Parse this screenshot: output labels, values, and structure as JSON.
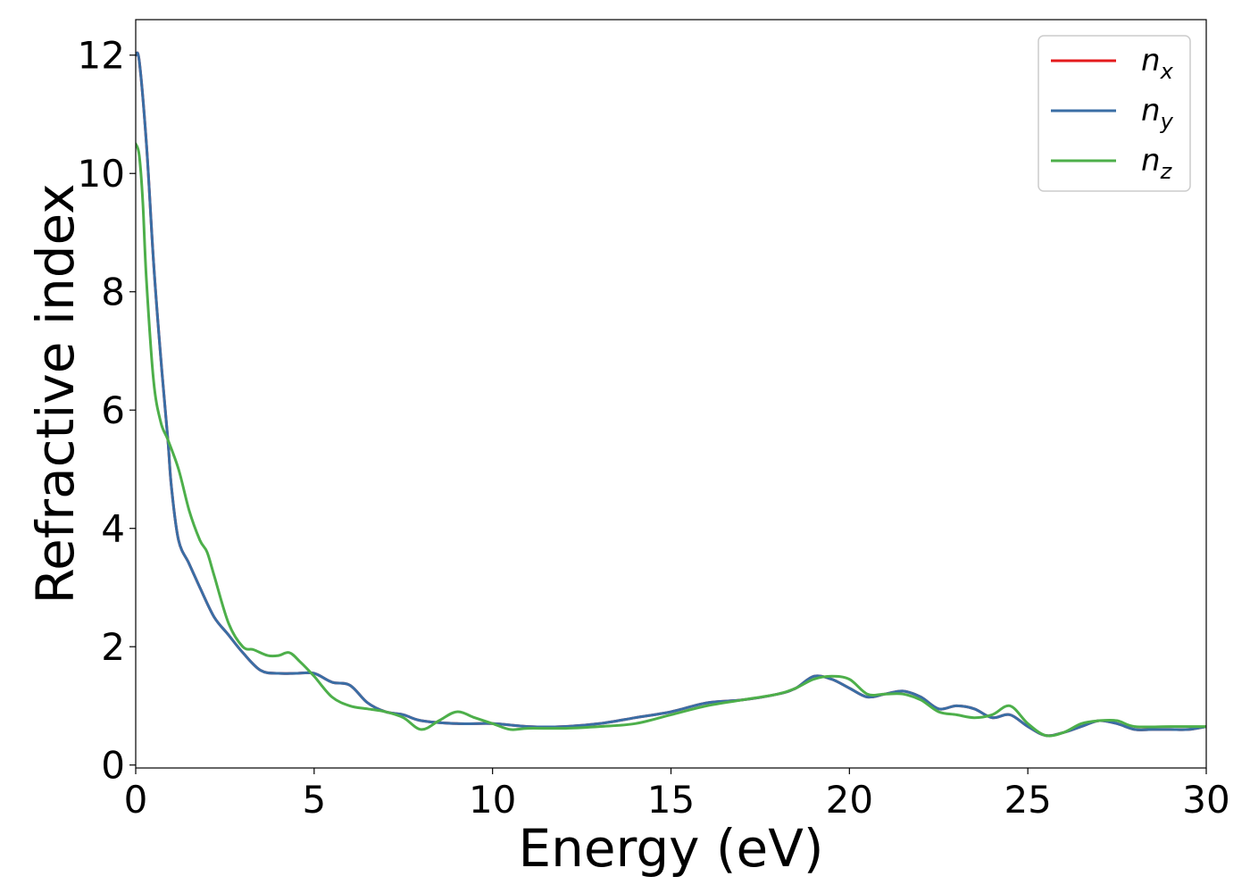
{
  "chart_data": {
    "type": "line",
    "title": "",
    "xlabel": "Energy (eV)",
    "ylabel": "Refractive index",
    "xlim": [
      0,
      30
    ],
    "ylim": [
      -0.05,
      12.6
    ],
    "xticks": [
      0,
      5,
      10,
      15,
      20,
      25,
      30
    ],
    "yticks": [
      0,
      2,
      4,
      6,
      8,
      10,
      12
    ],
    "grid": false,
    "legend_position": "top-right",
    "series": [
      {
        "name": "x",
        "color": "#e41a1c",
        "x": [
          0,
          0.1,
          0.3,
          0.5,
          0.7,
          0.9,
          1.0,
          1.2,
          1.5,
          1.8,
          2.2,
          2.6,
          3.0,
          3.5,
          4.0,
          4.5,
          5.0,
          5.5,
          6.0,
          6.5,
          7.0,
          7.5,
          8.0,
          9.0,
          10.0,
          11.0,
          12.0,
          13.0,
          14.0,
          15.0,
          16.0,
          17.0,
          18.0,
          18.5,
          19.0,
          19.5,
          20.0,
          20.5,
          21.0,
          21.5,
          22.0,
          22.5,
          23.0,
          23.5,
          24.0,
          24.5,
          25.0,
          25.5,
          26.0,
          26.5,
          27.0,
          27.5,
          28.0,
          28.5,
          29.0,
          29.5,
          30.0
        ],
        "y": [
          12.0,
          11.9,
          10.5,
          8.5,
          6.9,
          5.5,
          4.7,
          3.8,
          3.4,
          3.0,
          2.5,
          2.2,
          1.9,
          1.6,
          1.55,
          1.55,
          1.55,
          1.4,
          1.35,
          1.05,
          0.9,
          0.85,
          0.75,
          0.7,
          0.7,
          0.65,
          0.65,
          0.7,
          0.8,
          0.9,
          1.05,
          1.1,
          1.2,
          1.3,
          1.5,
          1.45,
          1.3,
          1.15,
          1.2,
          1.25,
          1.15,
          0.95,
          1.0,
          0.95,
          0.8,
          0.85,
          0.65,
          0.5,
          0.55,
          0.65,
          0.75,
          0.7,
          0.6,
          0.6,
          0.6,
          0.6,
          0.65
        ]
      },
      {
        "name": "y",
        "color": "#3a6ea5",
        "x": [
          0,
          0.1,
          0.3,
          0.5,
          0.7,
          0.9,
          1.0,
          1.2,
          1.5,
          1.8,
          2.2,
          2.6,
          3.0,
          3.5,
          4.0,
          4.5,
          5.0,
          5.5,
          6.0,
          6.5,
          7.0,
          7.5,
          8.0,
          9.0,
          10.0,
          11.0,
          12.0,
          13.0,
          14.0,
          15.0,
          16.0,
          17.0,
          18.0,
          18.5,
          19.0,
          19.5,
          20.0,
          20.5,
          21.0,
          21.5,
          22.0,
          22.5,
          23.0,
          23.5,
          24.0,
          24.5,
          25.0,
          25.5,
          26.0,
          26.5,
          27.0,
          27.5,
          28.0,
          28.5,
          29.0,
          29.5,
          30.0
        ],
        "y": [
          12.0,
          11.9,
          10.5,
          8.5,
          6.9,
          5.5,
          4.7,
          3.8,
          3.4,
          3.0,
          2.5,
          2.2,
          1.9,
          1.6,
          1.55,
          1.55,
          1.55,
          1.4,
          1.35,
          1.05,
          0.9,
          0.85,
          0.75,
          0.7,
          0.7,
          0.65,
          0.65,
          0.7,
          0.8,
          0.9,
          1.05,
          1.1,
          1.2,
          1.3,
          1.5,
          1.45,
          1.3,
          1.15,
          1.2,
          1.25,
          1.15,
          0.95,
          1.0,
          0.95,
          0.8,
          0.85,
          0.65,
          0.5,
          0.55,
          0.65,
          0.75,
          0.7,
          0.6,
          0.6,
          0.6,
          0.6,
          0.65
        ]
      },
      {
        "name": "z",
        "color": "#4daf4a",
        "x": [
          0,
          0.1,
          0.2,
          0.3,
          0.5,
          0.7,
          0.9,
          1.2,
          1.5,
          1.8,
          2.0,
          2.2,
          2.6,
          3.0,
          3.3,
          3.7,
          4.0,
          4.3,
          4.6,
          5.0,
          5.5,
          6.0,
          6.5,
          7.0,
          7.5,
          8.0,
          8.5,
          9.0,
          9.5,
          10.0,
          10.5,
          11.0,
          12.0,
          13.0,
          14.0,
          15.0,
          16.0,
          17.0,
          18.0,
          18.5,
          19.0,
          19.5,
          20.0,
          20.5,
          21.0,
          21.5,
          22.0,
          22.5,
          23.0,
          23.5,
          24.0,
          24.5,
          25.0,
          25.5,
          26.0,
          26.5,
          27.0,
          27.5,
          28.0,
          29.0,
          30.0
        ],
        "y": [
          10.5,
          10.3,
          9.5,
          8.2,
          6.5,
          5.8,
          5.5,
          5.0,
          4.3,
          3.8,
          3.6,
          3.2,
          2.4,
          2.0,
          1.95,
          1.85,
          1.85,
          1.9,
          1.75,
          1.5,
          1.15,
          1.0,
          0.95,
          0.9,
          0.8,
          0.6,
          0.75,
          0.9,
          0.8,
          0.7,
          0.6,
          0.62,
          0.62,
          0.65,
          0.7,
          0.85,
          1.0,
          1.1,
          1.2,
          1.3,
          1.45,
          1.5,
          1.45,
          1.2,
          1.2,
          1.2,
          1.1,
          0.9,
          0.85,
          0.8,
          0.85,
          1.0,
          0.7,
          0.5,
          0.55,
          0.7,
          0.75,
          0.75,
          0.65,
          0.65,
          0.65
        ]
      }
    ]
  }
}
